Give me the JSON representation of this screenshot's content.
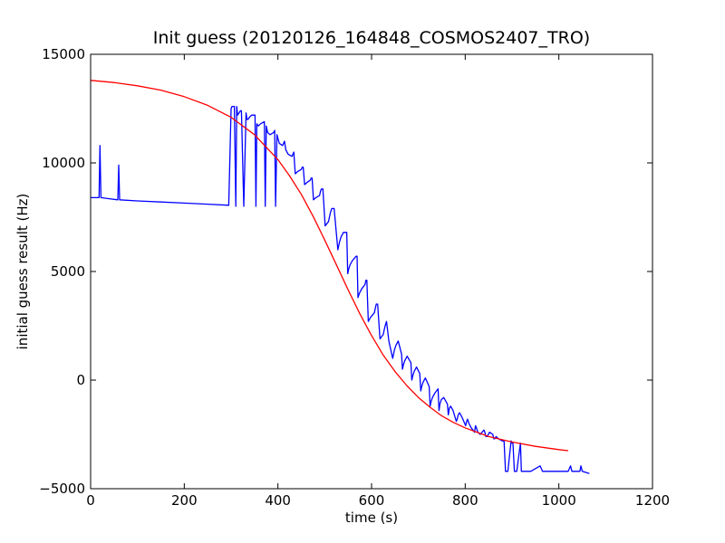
{
  "chart_data": {
    "type": "line",
    "title": "Init guess (20120126_164848_COSMOS2407_TRO)",
    "xlabel": "time (s)",
    "ylabel": "initial guess result (Hz)",
    "xlim": [
      0,
      1200
    ],
    "ylim": [
      -5000,
      15000
    ],
    "x_ticks": [
      0,
      200,
      400,
      600,
      800,
      1000,
      1200
    ],
    "y_ticks": [
      -5000,
      0,
      5000,
      10000,
      15000
    ],
    "x_tick_labels": [
      "0",
      "200",
      "400",
      "600",
      "800",
      "1000",
      "1200"
    ],
    "y_tick_labels": [
      "−5000",
      "0",
      "5000",
      "10000",
      "15000"
    ],
    "grid": false,
    "legend": "none",
    "series": [
      {
        "color": "#0000ff",
        "x": [
          0,
          18,
          20,
          22,
          40,
          58,
          60,
          62,
          100,
          150,
          200,
          250,
          295,
          300,
          302,
          307,
          310,
          312,
          314,
          317,
          320,
          322,
          327,
          332,
          334,
          336,
          339,
          344,
          351,
          353,
          355,
          358,
          363,
          371,
          373,
          375,
          378,
          383,
          391,
          393,
          395,
          398,
          403,
          410,
          412,
          414,
          417,
          422,
          430,
          432,
          434,
          437,
          442,
          450,
          452,
          454,
          457,
          462,
          469,
          471,
          473,
          476,
          481,
          489,
          491,
          493,
          496,
          501,
          508,
          510,
          512,
          515,
          520,
          528,
          530,
          532,
          535,
          540,
          547,
          549,
          551,
          554,
          559,
          567,
          569,
          571,
          574,
          579,
          586,
          588,
          590,
          593,
          598,
          606,
          608,
          610,
          613,
          618,
          625,
          627,
          629,
          632,
          637,
          645,
          647,
          649,
          652,
          657,
          664,
          666,
          668,
          671,
          676,
          684,
          686,
          688,
          691,
          696,
          703,
          705,
          707,
          710,
          715,
          723,
          725,
          727,
          730,
          735,
          742,
          744,
          746,
          749,
          754,
          762,
          764,
          766,
          769,
          774,
          781,
          783,
          785,
          788,
          793,
          801,
          803,
          805,
          808,
          813,
          820,
          822,
          824,
          827,
          832,
          840,
          842,
          844,
          847,
          852,
          859,
          861,
          863,
          866,
          871,
          879,
          881,
          883,
          886,
          891,
          898,
          900,
          902,
          905,
          910,
          918,
          920,
          922,
          925,
          930,
          940,
          960,
          965,
          968,
          975,
          1000,
          1020,
          1025,
          1028,
          1035,
          1045,
          1047,
          1050,
          1065
        ],
        "y": [
          8400,
          8400,
          10800,
          8400,
          8350,
          8300,
          9900,
          8300,
          8250,
          8200,
          8150,
          8100,
          8050,
          12500,
          12600,
          12600,
          8000,
          12600,
          12200,
          12300,
          12400,
          12400,
          8000,
          12300,
          12000,
          12000,
          12100,
          12200,
          12200,
          8000,
          11800,
          11700,
          11800,
          11900,
          8000,
          11700,
          11400,
          11300,
          11400,
          11500,
          8000,
          11300,
          10900,
          10800,
          10900,
          11000,
          10600,
          10400,
          10300,
          10400,
          10500,
          9500,
          9600,
          9700,
          9800,
          9800,
          9000,
          9100,
          9200,
          9300,
          9300,
          8300,
          8400,
          8500,
          8700,
          8800,
          8800,
          7100,
          7300,
          7500,
          7700,
          7900,
          7900,
          6000,
          6200,
          6400,
          6600,
          6800,
          6800,
          4900,
          5100,
          5300,
          5500,
          5700,
          5700,
          3800,
          4000,
          4200,
          4400,
          4600,
          4600,
          2700,
          2900,
          3100,
          3300,
          3500,
          3500,
          1900,
          2100,
          2300,
          2500,
          2700,
          1800,
          1000,
          1200,
          1400,
          1600,
          1800,
          1200,
          500,
          700,
          900,
          1100,
          800,
          0,
          200,
          400,
          600,
          300,
          -500,
          -300,
          -100,
          100,
          -300,
          -1200,
          -1000,
          -800,
          -600,
          -400,
          -1400,
          -1100,
          -900,
          -800,
          -1100,
          -1600,
          -1300,
          -1200,
          -1400,
          -1900,
          -1800,
          -1600,
          -1500,
          -1700,
          -2100,
          -1900,
          -1800,
          -2000,
          -2200,
          -2400,
          -2100,
          -2200,
          -2400,
          -2500,
          -2300,
          -2400,
          -2600,
          -2600,
          -2400,
          -2500,
          -2700,
          -2700,
          -2600,
          -2700,
          -2800,
          -2800,
          -2800,
          -4200,
          -4200,
          -2800,
          -2900,
          -2900,
          -4200,
          -4200,
          -2900,
          -4200,
          -4200,
          -4200,
          -4200,
          -4200,
          -3950,
          -4200,
          -4200,
          -4200,
          -4200,
          -4200,
          -3950,
          -4200,
          -4200,
          -4200,
          -3950,
          -4200,
          -4300
        ]
      },
      {
        "color": "#ff0000",
        "x": [
          0,
          50,
          100,
          150,
          200,
          250,
          300,
          350,
          400,
          425,
          450,
          475,
          500,
          525,
          550,
          575,
          600,
          625,
          650,
          675,
          700,
          725,
          750,
          775,
          800,
          850,
          900,
          950,
          1000,
          1020
        ],
        "y": [
          13800,
          13700,
          13550,
          13350,
          13050,
          12650,
          12100,
          11300,
          10150,
          9400,
          8550,
          7550,
          6450,
          5300,
          4150,
          3050,
          2050,
          1150,
          400,
          -250,
          -800,
          -1250,
          -1650,
          -1950,
          -2200,
          -2600,
          -2850,
          -3050,
          -3200,
          -3250
        ]
      }
    ]
  }
}
